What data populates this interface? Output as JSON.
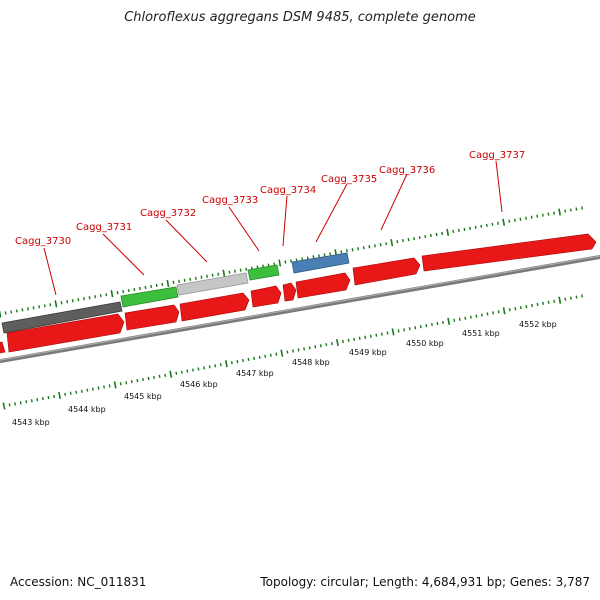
{
  "title": "Chloroflexus aggregans DSM 9485, complete genome",
  "footer": {
    "accession": "Accession: NC_011831",
    "summary": "Topology: circular; Length: 4,684,931 bp; Genes: 3,787"
  },
  "colors": {
    "cds": "#e81818",
    "gene_dark": "#5a5a5a",
    "gene_green": "#3cbf3c",
    "gene_light": "#c4c4c4",
    "gene_blue": "#4a7fb5",
    "backbone": "#808080",
    "tick": "#1a7a1a",
    "label": "#cc0000"
  },
  "gene_labels": [
    "Cagg_3730",
    "Cagg_3731",
    "Cagg_3732",
    "Cagg_3733",
    "Cagg_3734",
    "Cagg_3735",
    "Cagg_3736",
    "Cagg_3737"
  ],
  "kbp_labels": [
    "4543 kbp",
    "4544 kbp",
    "4545 kbp",
    "4546 kbp",
    "4547 kbp",
    "4548 kbp",
    "4549 kbp",
    "4550 kbp",
    "4551 kbp",
    "4552 kbp"
  ]
}
